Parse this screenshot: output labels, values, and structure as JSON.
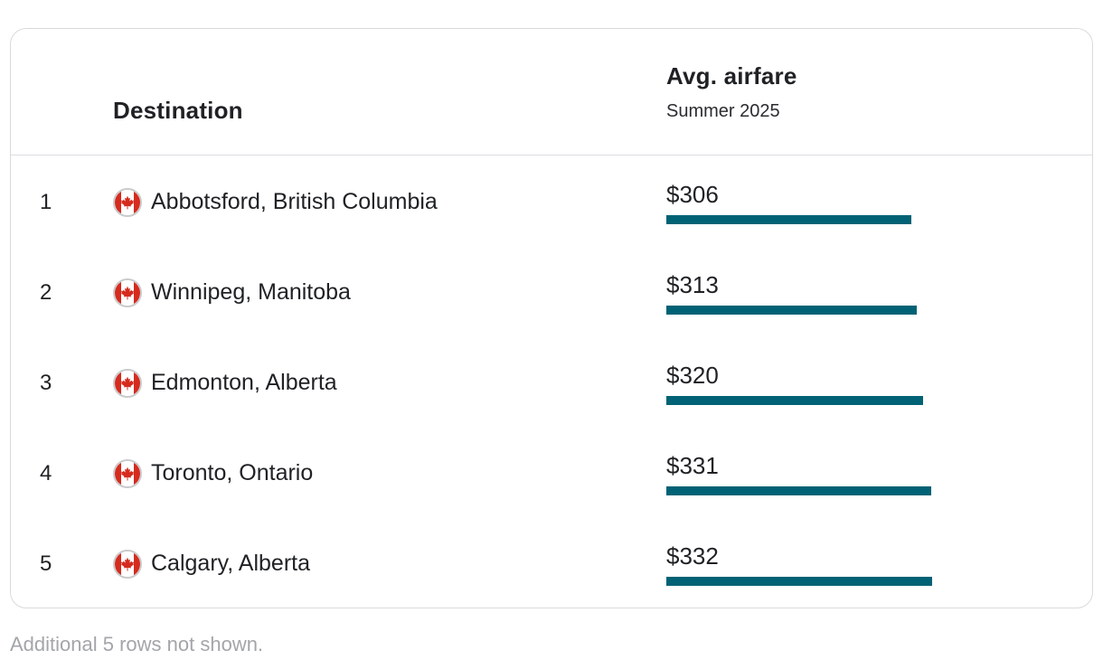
{
  "header": {
    "destination_label": "Destination",
    "metric_label": "Avg. airfare",
    "metric_sublabel": "Summer 2025"
  },
  "colors": {
    "bar": "#006274",
    "flag_red": "#d52b1e"
  },
  "icons": {
    "flag": "canada-flag-icon"
  },
  "chart_data": {
    "type": "bar",
    "categories": [
      "Abbotsford, British Columbia",
      "Winnipeg, Manitoba",
      "Edmonton, Alberta",
      "Toronto, Ontario",
      "Calgary, Alberta"
    ],
    "values": [
      306,
      313,
      320,
      331,
      332
    ],
    "ylim": [
      0,
      370
    ],
    "rows": [
      {
        "rank": "1",
        "destination": "Abbotsford, British Columbia",
        "price": "$306",
        "value": 306
      },
      {
        "rank": "2",
        "destination": "Winnipeg, Manitoba",
        "price": "$313",
        "value": 313
      },
      {
        "rank": "3",
        "destination": "Edmonton, Alberta",
        "price": "$320",
        "value": 320
      },
      {
        "rank": "4",
        "destination": "Toronto, Ontario",
        "price": "$331",
        "value": 331
      },
      {
        "rank": "5",
        "destination": "Calgary, Alberta",
        "price": "$332",
        "value": 332
      }
    ]
  },
  "footnote": "Additional 5 rows not shown."
}
